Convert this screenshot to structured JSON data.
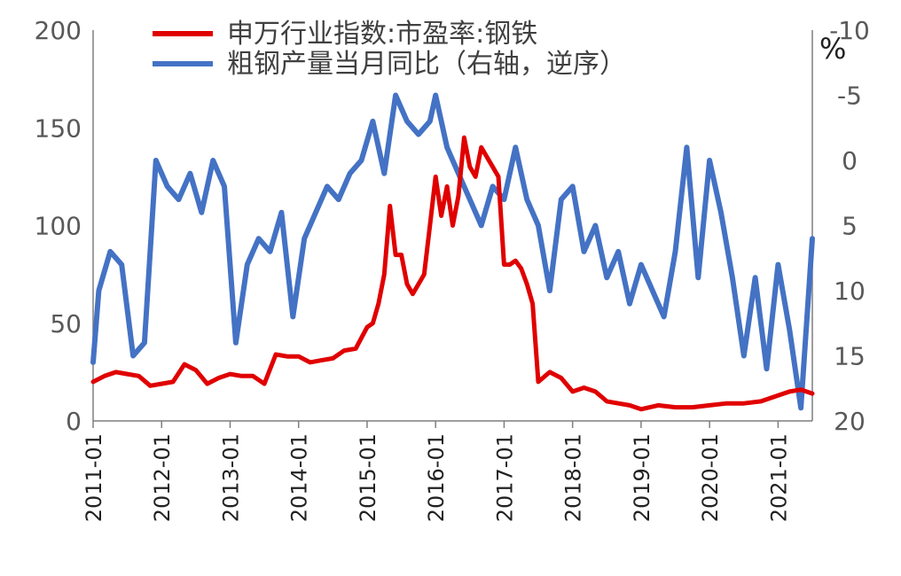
{
  "chart_data": {
    "type": "line",
    "unit_right": "%",
    "left_axis": {
      "ylim": [
        0,
        200
      ],
      "ticks": [
        "0",
        "50",
        "100",
        "150",
        "200"
      ]
    },
    "right_axis": {
      "ylim": [
        20,
        -10
      ],
      "reversed": true,
      "ticks": [
        "20",
        "15",
        "10",
        "5",
        "0",
        "-5",
        "-10"
      ]
    },
    "x_ticks": [
      "2011-01",
      "2012-01",
      "2013-01",
      "2014-01",
      "2015-01",
      "2016-01",
      "2017-01",
      "2018-01",
      "2019-01",
      "2020-01",
      "2021-01"
    ],
    "x_range": [
      "2011-01",
      "2021-07"
    ],
    "legend_position": "top",
    "series": [
      {
        "name": "申万行业指数:市盈率:钢铁",
        "axis": "left",
        "color": "#E00000",
        "x": [
          "2011-01",
          "2011-03",
          "2011-05",
          "2011-07",
          "2011-09",
          "2011-11",
          "2012-01",
          "2012-03",
          "2012-05",
          "2012-07",
          "2012-09",
          "2012-11",
          "2013-01",
          "2013-03",
          "2013-05",
          "2013-07",
          "2013-09",
          "2013-11",
          "2014-01",
          "2014-03",
          "2014-05",
          "2014-07",
          "2014-09",
          "2014-11",
          "2015-01",
          "2015-02",
          "2015-03",
          "2015-04",
          "2015-05",
          "2015-06",
          "2015-07",
          "2015-08",
          "2015-09",
          "2015-10",
          "2015-11",
          "2015-12",
          "2016-01",
          "2016-02",
          "2016-03",
          "2016-04",
          "2016-05",
          "2016-06",
          "2016-07",
          "2016-08",
          "2016-09",
          "2016-10",
          "2016-11",
          "2016-12",
          "2017-01",
          "2017-02",
          "2017-03",
          "2017-04",
          "2017-05",
          "2017-06",
          "2017-07",
          "2017-09",
          "2017-11",
          "2018-01",
          "2018-03",
          "2018-05",
          "2018-07",
          "2018-09",
          "2018-11",
          "2019-01",
          "2019-04",
          "2019-07",
          "2019-10",
          "2020-01",
          "2020-04",
          "2020-07",
          "2020-10",
          "2021-01",
          "2021-03",
          "2021-05",
          "2021-07"
        ],
        "values": [
          20,
          23,
          25,
          24,
          23,
          18,
          19,
          20,
          29,
          26,
          19,
          22,
          24,
          23,
          23,
          19,
          34,
          33,
          33,
          30,
          31,
          32,
          36,
          37,
          48,
          50,
          60,
          75,
          110,
          85,
          85,
          70,
          65,
          70,
          75,
          100,
          125,
          105,
          120,
          100,
          115,
          145,
          130,
          125,
          140,
          135,
          130,
          125,
          80,
          80,
          82,
          78,
          70,
          60,
          20,
          25,
          22,
          15,
          17,
          15,
          10,
          9,
          8,
          6,
          8,
          7,
          7,
          8,
          9,
          9,
          10,
          13,
          15,
          16,
          14
        ]
      },
      {
        "name": "粗钢产量当月同比（右轴，逆序）",
        "axis": "right",
        "color": "#4472C4",
        "x": [
          "2011-01",
          "2011-02",
          "2011-04",
          "2011-06",
          "2011-08",
          "2011-10",
          "2011-12",
          "2012-02",
          "2012-04",
          "2012-06",
          "2012-08",
          "2012-10",
          "2012-12",
          "2013-02",
          "2013-04",
          "2013-06",
          "2013-08",
          "2013-10",
          "2013-12",
          "2014-02",
          "2014-04",
          "2014-06",
          "2014-08",
          "2014-10",
          "2014-12",
          "2015-02",
          "2015-04",
          "2015-06",
          "2015-08",
          "2015-10",
          "2015-12",
          "2016-01",
          "2016-03",
          "2016-05",
          "2016-07",
          "2016-09",
          "2016-11",
          "2017-01",
          "2017-03",
          "2017-05",
          "2017-07",
          "2017-09",
          "2017-11",
          "2018-01",
          "2018-03",
          "2018-05",
          "2018-07",
          "2018-09",
          "2018-11",
          "2019-01",
          "2019-03",
          "2019-05",
          "2019-07",
          "2019-09",
          "2019-11",
          "2020-01",
          "2020-03",
          "2020-05",
          "2020-07",
          "2020-09",
          "2020-11",
          "2021-01",
          "2021-03",
          "2021-05",
          "2021-07"
        ],
        "values": [
          15.5,
          10,
          7,
          8,
          15,
          14,
          0,
          2,
          3,
          1,
          4,
          0,
          2,
          14,
          8,
          6,
          7,
          4,
          12,
          6,
          4,
          2,
          3,
          1,
          0,
          -3,
          1,
          -5,
          -3,
          -2,
          -3,
          -5,
          -1,
          1,
          3,
          5,
          2,
          3,
          -1,
          3,
          5,
          10,
          3,
          2,
          7,
          5,
          9,
          7,
          11,
          8,
          10,
          12,
          7,
          -1,
          9,
          0,
          4,
          9,
          15,
          9,
          16,
          8,
          13,
          19,
          6
        ]
      }
    ]
  }
}
